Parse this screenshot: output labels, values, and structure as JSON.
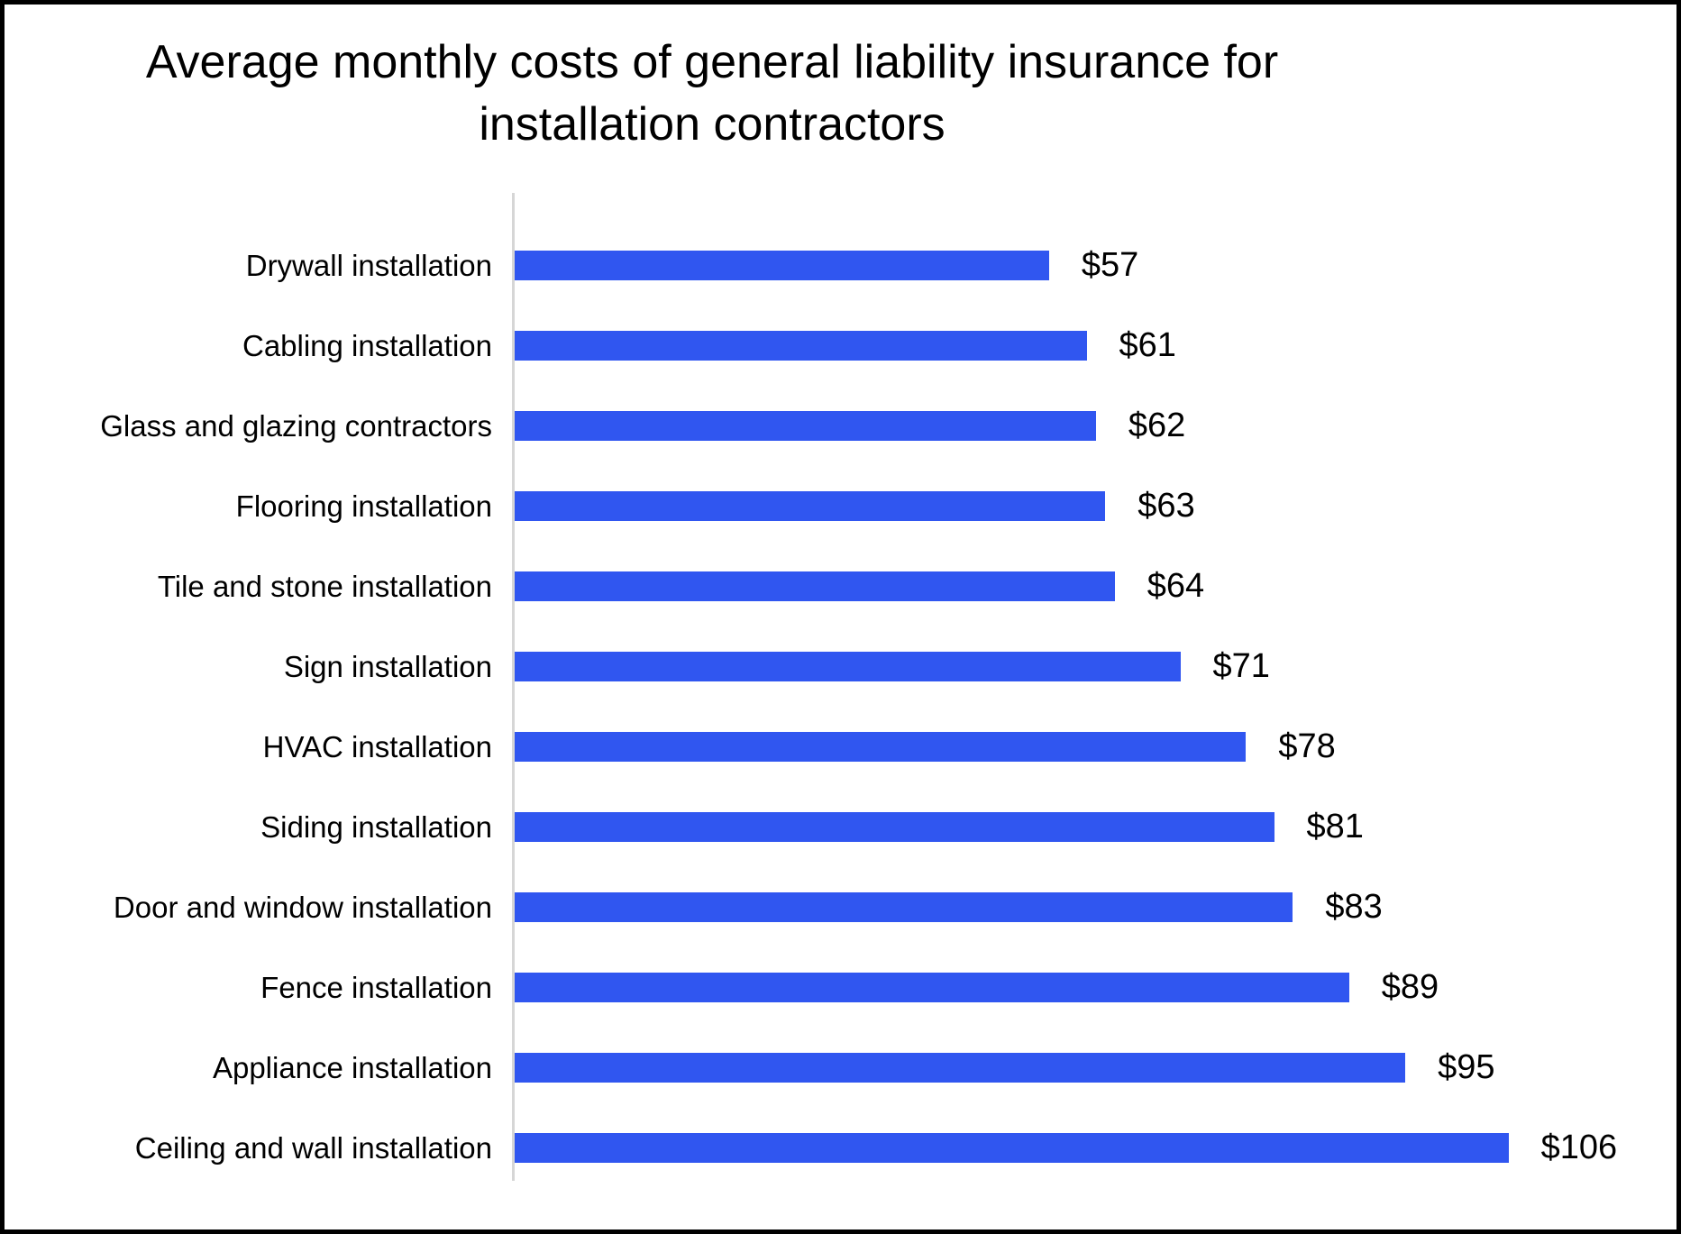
{
  "frame": {
    "border_color": "#000000",
    "background_color": "#FFFFFF"
  },
  "chart_data": {
    "type": "bar",
    "orientation": "horizontal",
    "title": "Average monthly costs of general liability insurance for installation contractors",
    "title_lines": [
      "Average monthly costs of general liability insurance for",
      "installation contractors"
    ],
    "categories": [
      "Drywall installation",
      "Cabling installation",
      "Glass and glazing contractors",
      "Flooring installation",
      "Tile and stone installation",
      "Sign installation",
      "HVAC installation",
      "Siding installation",
      "Door and window installation",
      "Fence installation",
      "Appliance installation",
      "Ceiling and wall installation"
    ],
    "values": [
      57,
      61,
      62,
      63,
      64,
      71,
      78,
      81,
      83,
      89,
      95,
      106
    ],
    "display_values": [
      "$57",
      "$61",
      "$62",
      "$63",
      "$64",
      "$71",
      "$78",
      "$81",
      "$83",
      "$89",
      "$95",
      "$106"
    ],
    "value_prefix": "$",
    "xlabel": "",
    "ylabel": "",
    "xlim": [
      0,
      122
    ],
    "grid": false,
    "legend": null,
    "bar_color": "#3056F0",
    "axis_line_color": "#D6D6D6",
    "text_color": "#000000"
  }
}
